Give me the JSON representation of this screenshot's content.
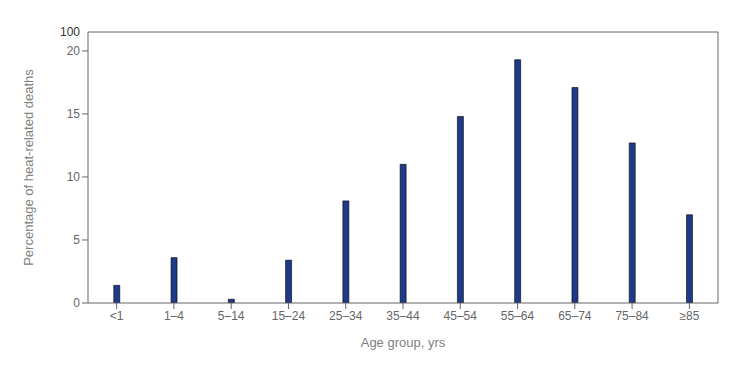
{
  "chart_data": {
    "type": "bar",
    "categories": [
      "<1",
      "1–4",
      "5–14",
      "15–24",
      "25–34",
      "35–44",
      "45–54",
      "55–64",
      "65–74",
      "75–84",
      "≥85"
    ],
    "values": [
      1.4,
      3.6,
      0.3,
      3.4,
      8.1,
      11.0,
      14.8,
      19.3,
      17.1,
      12.7,
      7.0
    ],
    "color": "#1f3a8a",
    "xlabel": "Age group, yrs",
    "ylabel": "Percentage of heat-related deaths",
    "ylim": [
      0,
      21.5
    ],
    "yticks": [
      0,
      5,
      10,
      15,
      20
    ],
    "grid": false,
    "annotations": [
      {
        "text": "100"
      }
    ]
  }
}
